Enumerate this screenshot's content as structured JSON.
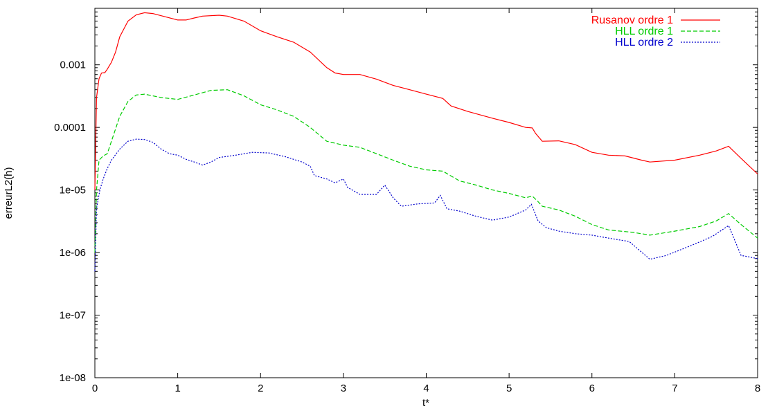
{
  "chart_data": {
    "type": "line",
    "title": "",
    "xlabel": "t*",
    "ylabel": "erreurL2(h)",
    "xlim": [
      0,
      8
    ],
    "ylim": [
      1e-08,
      0.008
    ],
    "yscale": "log",
    "grid": false,
    "legend_position": "top-right",
    "x_ticks": [
      0,
      1,
      2,
      3,
      4,
      5,
      6,
      7,
      8
    ],
    "x_tick_labels": [
      "0",
      "1",
      "2",
      "3",
      "4",
      "5",
      "6",
      "7",
      "8"
    ],
    "y_ticks": [
      1e-08,
      1e-07,
      1e-06,
      1e-05,
      0.0001,
      0.001
    ],
    "y_tick_labels": [
      "1e-08",
      "1e-07",
      "1e-06",
      "1e-05",
      "0.0001",
      "0.001"
    ],
    "series": [
      {
        "name": "Rusanov ordre 1",
        "color": "#ff0000",
        "dash": "solid",
        "points": [
          [
            0,
            1e-05
          ],
          [
            0.02,
            0.0003
          ],
          [
            0.05,
            0.0006
          ],
          [
            0.08,
            0.00074
          ],
          [
            0.12,
            0.00075
          ],
          [
            0.15,
            0.00085
          ],
          [
            0.2,
            0.0011
          ],
          [
            0.25,
            0.0016
          ],
          [
            0.3,
            0.0028
          ],
          [
            0.4,
            0.005
          ],
          [
            0.5,
            0.0063
          ],
          [
            0.6,
            0.0068
          ],
          [
            0.7,
            0.0066
          ],
          [
            0.8,
            0.0061
          ],
          [
            1.0,
            0.0052
          ],
          [
            1.1,
            0.0052
          ],
          [
            1.2,
            0.0056
          ],
          [
            1.3,
            0.006
          ],
          [
            1.5,
            0.0062
          ],
          [
            1.6,
            0.006
          ],
          [
            1.8,
            0.005
          ],
          [
            2.0,
            0.0035
          ],
          [
            2.2,
            0.0028
          ],
          [
            2.4,
            0.0023
          ],
          [
            2.6,
            0.0016
          ],
          [
            2.8,
            0.0009
          ],
          [
            2.9,
            0.00074
          ],
          [
            3.0,
            0.0007
          ],
          [
            3.2,
            0.0007
          ],
          [
            3.4,
            0.00059
          ],
          [
            3.6,
            0.00047
          ],
          [
            3.8,
            0.0004
          ],
          [
            4.0,
            0.00034
          ],
          [
            4.2,
            0.00029
          ],
          [
            4.3,
            0.00022
          ],
          [
            4.5,
            0.00018
          ],
          [
            4.8,
            0.00014
          ],
          [
            5.0,
            0.00012
          ],
          [
            5.2,
            0.0001
          ],
          [
            5.28,
            9.8e-05
          ],
          [
            5.32,
            8e-05
          ],
          [
            5.4,
            6e-05
          ],
          [
            5.6,
            6.1e-05
          ],
          [
            5.8,
            5.3e-05
          ],
          [
            6.0,
            4e-05
          ],
          [
            6.2,
            3.6e-05
          ],
          [
            6.4,
            3.5e-05
          ],
          [
            6.6,
            3e-05
          ],
          [
            6.7,
            2.8e-05
          ],
          [
            7.0,
            3e-05
          ],
          [
            7.3,
            3.6e-05
          ],
          [
            7.5,
            4.2e-05
          ],
          [
            7.65,
            5e-05
          ],
          [
            7.8,
            3.2e-05
          ],
          [
            8.0,
            1.8e-05
          ]
        ]
      },
      {
        "name": "HLL ordre 1",
        "color": "#00cc00",
        "dash": "dashed",
        "points": [
          [
            0,
            1e-06
          ],
          [
            0.02,
            1e-05
          ],
          [
            0.05,
            3e-05
          ],
          [
            0.1,
            3.5e-05
          ],
          [
            0.15,
            3.8e-05
          ],
          [
            0.2,
            6e-05
          ],
          [
            0.3,
            0.00015
          ],
          [
            0.4,
            0.00026
          ],
          [
            0.5,
            0.00033
          ],
          [
            0.6,
            0.00034
          ],
          [
            0.8,
            0.0003
          ],
          [
            1.0,
            0.00028
          ],
          [
            1.2,
            0.00033
          ],
          [
            1.4,
            0.00039
          ],
          [
            1.6,
            0.0004
          ],
          [
            1.8,
            0.00032
          ],
          [
            2.0,
            0.00023
          ],
          [
            2.2,
            0.00019
          ],
          [
            2.4,
            0.00015
          ],
          [
            2.6,
            0.0001
          ],
          [
            2.8,
            6e-05
          ],
          [
            3.0,
            5.2e-05
          ],
          [
            3.2,
            4.8e-05
          ],
          [
            3.4,
            3.8e-05
          ],
          [
            3.6,
            3e-05
          ],
          [
            3.8,
            2.4e-05
          ],
          [
            4.0,
            2.1e-05
          ],
          [
            4.2,
            2e-05
          ],
          [
            4.4,
            1.4e-05
          ],
          [
            4.6,
            1.2e-05
          ],
          [
            4.8,
            1e-05
          ],
          [
            5.0,
            8.8e-06
          ],
          [
            5.2,
            7.5e-06
          ],
          [
            5.28,
            8e-06
          ],
          [
            5.35,
            6.5e-06
          ],
          [
            5.4,
            5.5e-06
          ],
          [
            5.6,
            4.8e-06
          ],
          [
            5.8,
            3.8e-06
          ],
          [
            6.0,
            2.8e-06
          ],
          [
            6.2,
            2.3e-06
          ],
          [
            6.5,
            2.1e-06
          ],
          [
            6.7,
            1.9e-06
          ],
          [
            7.0,
            2.2e-06
          ],
          [
            7.3,
            2.6e-06
          ],
          [
            7.5,
            3.2e-06
          ],
          [
            7.65,
            4.2e-06
          ],
          [
            7.8,
            2.8e-06
          ],
          [
            8.0,
            1.7e-06
          ]
        ]
      },
      {
        "name": "HLL ordre 2",
        "color": "#0000cc",
        "dash": "dotted",
        "points": [
          [
            0,
            5e-07
          ],
          [
            0.02,
            5e-06
          ],
          [
            0.06,
            1e-05
          ],
          [
            0.1,
            1.5e-05
          ],
          [
            0.15,
            2.2e-05
          ],
          [
            0.2,
            3e-05
          ],
          [
            0.3,
            4.5e-05
          ],
          [
            0.4,
            6e-05
          ],
          [
            0.5,
            6.5e-05
          ],
          [
            0.6,
            6.4e-05
          ],
          [
            0.7,
            5.8e-05
          ],
          [
            0.8,
            4.5e-05
          ],
          [
            0.9,
            3.8e-05
          ],
          [
            1.0,
            3.6e-05
          ],
          [
            1.1,
            3.1e-05
          ],
          [
            1.2,
            2.8e-05
          ],
          [
            1.3,
            2.5e-05
          ],
          [
            1.4,
            2.8e-05
          ],
          [
            1.5,
            3.3e-05
          ],
          [
            1.7,
            3.6e-05
          ],
          [
            1.9,
            4e-05
          ],
          [
            2.1,
            3.9e-05
          ],
          [
            2.3,
            3.4e-05
          ],
          [
            2.5,
            2.8e-05
          ],
          [
            2.6,
            2.4e-05
          ],
          [
            2.65,
            1.7e-05
          ],
          [
            2.8,
            1.5e-05
          ],
          [
            2.9,
            1.3e-05
          ],
          [
            3.0,
            1.5e-05
          ],
          [
            3.05,
            1.1e-05
          ],
          [
            3.2,
            8.5e-06
          ],
          [
            3.4,
            8.5e-06
          ],
          [
            3.5,
            1.2e-05
          ],
          [
            3.6,
            7.5e-06
          ],
          [
            3.7,
            5.5e-06
          ],
          [
            3.9,
            6e-06
          ],
          [
            4.1,
            6.2e-06
          ],
          [
            4.17,
            8.2e-06
          ],
          [
            4.25,
            5e-06
          ],
          [
            4.4,
            4.6e-06
          ],
          [
            4.6,
            3.8e-06
          ],
          [
            4.8,
            3.3e-06
          ],
          [
            5.0,
            3.7e-06
          ],
          [
            5.2,
            4.8e-06
          ],
          [
            5.27,
            5.9e-06
          ],
          [
            5.35,
            3.2e-06
          ],
          [
            5.45,
            2.5e-06
          ],
          [
            5.6,
            2.2e-06
          ],
          [
            5.8,
            2e-06
          ],
          [
            6.0,
            1.9e-06
          ],
          [
            6.2,
            1.7e-06
          ],
          [
            6.45,
            1.5e-06
          ],
          [
            6.7,
            7.8e-07
          ],
          [
            6.9,
            9e-07
          ],
          [
            7.2,
            1.3e-06
          ],
          [
            7.45,
            1.8e-06
          ],
          [
            7.65,
            2.7e-06
          ],
          [
            7.8,
            9e-07
          ],
          [
            8.0,
            8e-07
          ]
        ]
      }
    ]
  }
}
